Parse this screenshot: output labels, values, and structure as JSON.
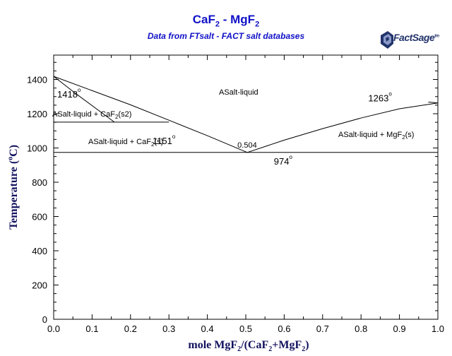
{
  "title_parts": [
    "CaF",
    "2",
    " - MgF",
    "2"
  ],
  "subtitle": "Data from FTsalt - FACT salt databases",
  "logo": {
    "text": "FactSage",
    "mark": "tm"
  },
  "xlabel_parts": [
    "mole MgF",
    "2",
    "/(CaF",
    "2",
    "+MgF",
    "2",
    ")"
  ],
  "ylabel_parts": [
    "Temperature (",
    "o",
    "C)"
  ],
  "colors": {
    "title": "#1010c8",
    "axis_label": "#12125e",
    "line": "#000000",
    "logo": "#22336b"
  },
  "chart_data": {
    "type": "line",
    "title": "CaF2 - MgF2",
    "subtitle": "Data from FTsalt - FACT salt databases",
    "xlabel": "mole MgF2/(CaF2+MgF2)",
    "ylabel": "Temperature (oC)",
    "xlim": [
      0,
      1
    ],
    "ylim": [
      0,
      1550
    ],
    "xticks": [
      "0.0",
      "0.1",
      "0.2",
      "0.3",
      "0.4",
      "0.5",
      "0.6",
      "0.7",
      "0.8",
      "0.9",
      "1.0"
    ],
    "yticks": [
      "0",
      "200",
      "400",
      "600",
      "800",
      "1000",
      "1200",
      "1400"
    ],
    "grid": false,
    "series": [
      {
        "x": [
          0.0,
          0.1,
          0.2,
          0.3,
          0.4,
          0.504
        ],
        "y": [
          1418,
          1335,
          1252,
          1162,
          1072,
          974
        ]
      },
      {
        "x": [
          0.0,
          0.055
        ],
        "y": [
          1418,
          1322
        ]
      },
      {
        "x": [
          0.055,
          0.158
        ],
        "y": [
          1322,
          1151
        ]
      },
      {
        "x": [
          0.504,
          0.6,
          0.7,
          0.8,
          0.9,
          1.0
        ],
        "y": [
          974,
          1046,
          1113,
          1175,
          1229,
          1263
        ]
      },
      {
        "x": [
          0.975,
          1.0
        ],
        "y": [
          1268,
          1263
        ]
      },
      {
        "x": [
          0.0,
          0.3
        ],
        "y": [
          1151,
          1151
        ]
      },
      {
        "x": [
          0.0,
          1.0
        ],
        "y": [
          974,
          974
        ]
      }
    ],
    "annotations": [
      {
        "text": "1418",
        "sup": "o",
        "x": 0.0,
        "y": 1418
      },
      {
        "text": "1151",
        "sup": "o",
        "x": 0.158,
        "y": 1151
      },
      {
        "text": "974",
        "sup": "o",
        "x": 0.7,
        "y": 974
      },
      {
        "text": "1263",
        "sup": "o",
        "x": 0.975,
        "y": 1263
      },
      {
        "text": "0.504",
        "sup": "",
        "x": 0.504,
        "y": 974
      }
    ],
    "regions": [
      {
        "parts": [
          "ASalt-liquid"
        ]
      },
      {
        "parts": [
          "ASalt-liquid + CaF",
          "2",
          "(s2)"
        ]
      },
      {
        "parts": [
          "ASalt-liquid + CaF",
          "2",
          "(s)"
        ]
      },
      {
        "parts": [
          "ASalt-liquid + MgF",
          "2",
          "(s)"
        ]
      }
    ]
  }
}
